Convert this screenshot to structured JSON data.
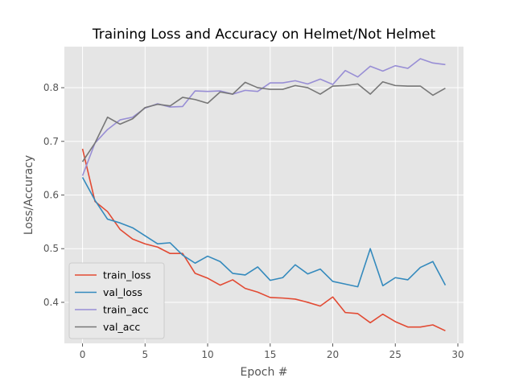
{
  "chart_data": {
    "type": "line",
    "title": "Training Loss and Accuracy on Helmet/Not Helmet",
    "xlabel": "Epoch #",
    "ylabel": "Loss/Accuracy",
    "xlim": [
      -1.45,
      30.45
    ],
    "ylim": [
      0.3235,
      0.8765
    ],
    "xticks": [
      0,
      5,
      10,
      15,
      20,
      25,
      30
    ],
    "yticks": [
      0.4,
      0.5,
      0.6,
      0.7,
      0.8
    ],
    "grid": true,
    "legend_position": "lower-left",
    "background": "#e5e5e5",
    "x": [
      0,
      1,
      2,
      3,
      4,
      5,
      6,
      7,
      8,
      9,
      10,
      11,
      12,
      13,
      14,
      15,
      16,
      17,
      18,
      19,
      20,
      21,
      22,
      23,
      24,
      25,
      26,
      27,
      28,
      29
    ],
    "series": [
      {
        "name": "train_loss",
        "color": "#e24a33",
        "values": [
          0.686,
          0.588,
          0.569,
          0.536,
          0.518,
          0.509,
          0.503,
          0.491,
          0.491,
          0.454,
          0.445,
          0.432,
          0.442,
          0.426,
          0.419,
          0.409,
          0.408,
          0.406,
          0.4,
          0.393,
          0.41,
          0.381,
          0.379,
          0.362,
          0.378,
          0.364,
          0.354,
          0.354,
          0.358,
          0.347
        ]
      },
      {
        "name": "val_loss",
        "color": "#348abd",
        "values": [
          0.633,
          0.59,
          0.555,
          0.548,
          0.539,
          0.524,
          0.509,
          0.511,
          0.488,
          0.473,
          0.486,
          0.476,
          0.454,
          0.451,
          0.466,
          0.441,
          0.446,
          0.47,
          0.453,
          0.462,
          0.439,
          0.434,
          0.429,
          0.5,
          0.431,
          0.446,
          0.442,
          0.465,
          0.476,
          0.432
        ]
      },
      {
        "name": "train_acc",
        "color": "#988ed5",
        "values": [
          0.636,
          0.697,
          0.722,
          0.74,
          0.745,
          0.762,
          0.77,
          0.764,
          0.765,
          0.794,
          0.793,
          0.794,
          0.788,
          0.795,
          0.793,
          0.809,
          0.809,
          0.813,
          0.807,
          0.816,
          0.806,
          0.832,
          0.82,
          0.84,
          0.831,
          0.841,
          0.836,
          0.854,
          0.846,
          0.843
        ]
      },
      {
        "name": "val_acc",
        "color": "#777777",
        "values": [
          0.662,
          0.697,
          0.745,
          0.732,
          0.742,
          0.763,
          0.769,
          0.766,
          0.782,
          0.778,
          0.771,
          0.792,
          0.788,
          0.81,
          0.8,
          0.797,
          0.797,
          0.804,
          0.8,
          0.788,
          0.803,
          0.804,
          0.807,
          0.788,
          0.811,
          0.804,
          0.803,
          0.803,
          0.786,
          0.799
        ]
      }
    ]
  }
}
